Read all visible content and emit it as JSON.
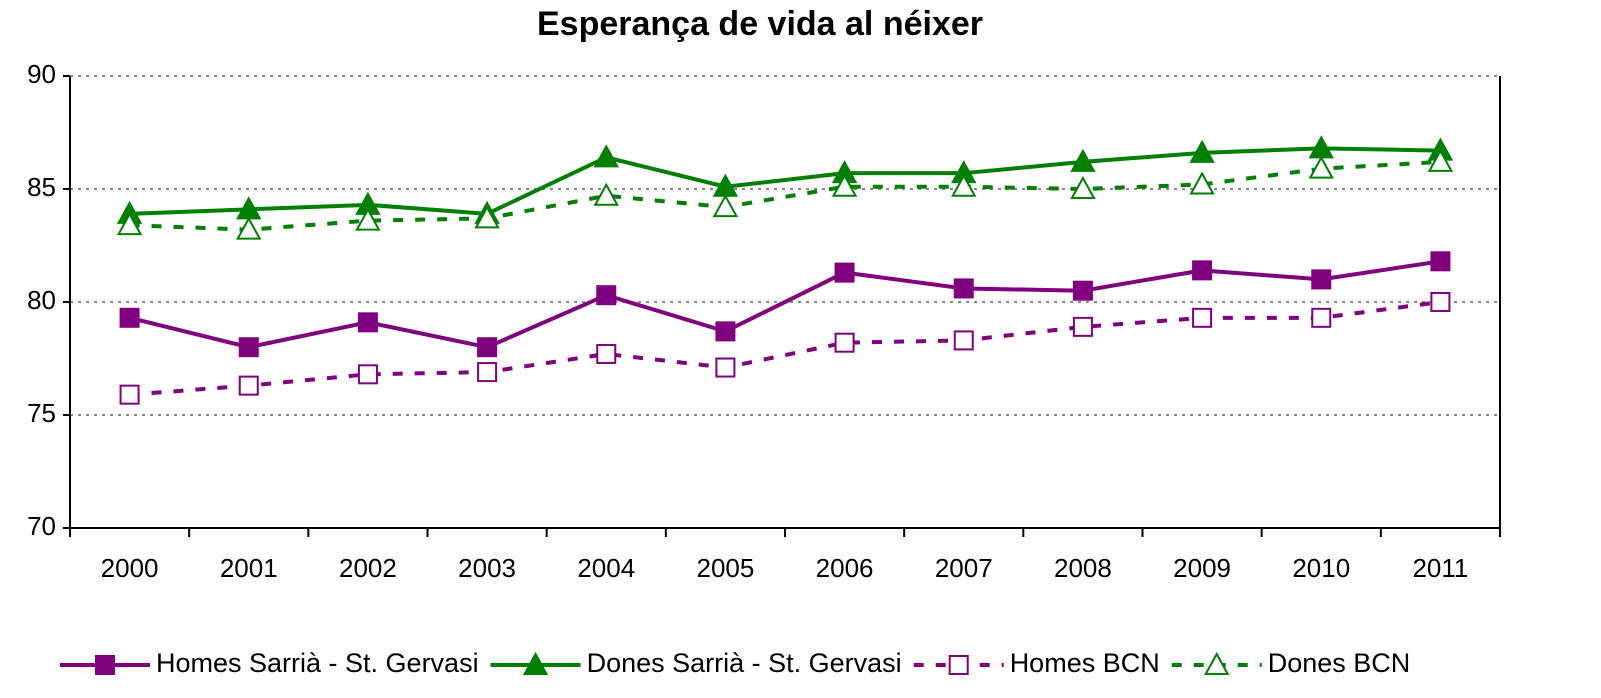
{
  "chart_data": {
    "type": "line",
    "title": "Esperança de vida al néixer",
    "categories": [
      "2000",
      "2001",
      "2002",
      "2003",
      "2004",
      "2005",
      "2006",
      "2007",
      "2008",
      "2009",
      "2010",
      "2011"
    ],
    "series": [
      {
        "name": "Homes Sarrià - St. Gervasi",
        "color": "#800080",
        "marker": "square",
        "filled": true,
        "dashed": false,
        "values": [
          79.3,
          78.0,
          79.1,
          78.0,
          80.3,
          78.7,
          81.3,
          80.6,
          80.5,
          81.4,
          81.0,
          81.8
        ]
      },
      {
        "name": "Dones Sarrià - St. Gervasi",
        "color": "#008000",
        "marker": "triangle",
        "filled": true,
        "dashed": false,
        "values": [
          83.9,
          84.1,
          84.3,
          83.9,
          86.4,
          85.1,
          85.7,
          85.7,
          86.2,
          86.6,
          86.8,
          86.7
        ]
      },
      {
        "name": "Homes BCN",
        "color": "#800080",
        "marker": "square",
        "filled": false,
        "dashed": true,
        "values": [
          75.9,
          76.3,
          76.8,
          76.9,
          77.7,
          77.1,
          78.2,
          78.3,
          78.9,
          79.3,
          79.3,
          80.0
        ]
      },
      {
        "name": "Dones BCN",
        "color": "#008000",
        "marker": "triangle",
        "filled": false,
        "dashed": true,
        "values": [
          83.4,
          83.2,
          83.6,
          83.7,
          84.7,
          84.2,
          85.1,
          85.1,
          85.0,
          85.2,
          85.9,
          86.2
        ]
      }
    ],
    "ylim": [
      70,
      90
    ],
    "yticks": [
      70,
      75,
      80,
      85,
      90
    ],
    "grid": true,
    "legend": "bottom"
  }
}
